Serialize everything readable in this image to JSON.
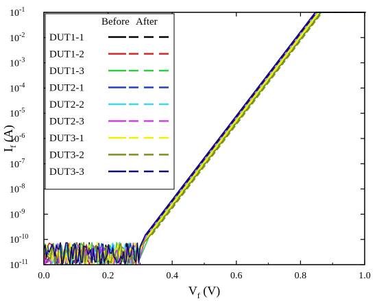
{
  "chart_data": {
    "type": "line",
    "y_scale": "log",
    "xlim": [
      0.0,
      1.0
    ],
    "ylim": [
      1e-11,
      0.1
    ],
    "x_ticks": [
      "0.0",
      "0.2",
      "0.4",
      "0.6",
      "0.8",
      "1.0"
    ],
    "x_tick_values": [
      0.0,
      0.2,
      0.4,
      0.6,
      0.8,
      1.0
    ],
    "y_ticks": [
      {
        "base": "10",
        "exp": "-11",
        "value": 1e-11
      },
      {
        "base": "10",
        "exp": "-10",
        "value": 1e-10
      },
      {
        "base": "10",
        "exp": "-9",
        "value": 1e-09
      },
      {
        "base": "10",
        "exp": "-8",
        "value": 1e-08
      },
      {
        "base": "10",
        "exp": "-7",
        "value": 1e-07
      },
      {
        "base": "10",
        "exp": "-6",
        "value": 1e-06
      },
      {
        "base": "10",
        "exp": "-5",
        "value": 1e-05
      },
      {
        "base": "10",
        "exp": "-4",
        "value": 0.0001
      },
      {
        "base": "10",
        "exp": "-3",
        "value": 0.001
      },
      {
        "base": "10",
        "exp": "-2",
        "value": 0.01
      },
      {
        "base": "10",
        "exp": "-1",
        "value": 0.1
      }
    ],
    "xlabel": {
      "main": "V",
      "sub": "f",
      "unit": " (V)"
    },
    "ylabel": {
      "main": "I",
      "sub": "f",
      "unit": " (A)"
    },
    "legend": {
      "position": "top-left",
      "header_before": "Before",
      "header_after": "After"
    },
    "grid": false,
    "series": [
      {
        "name": "DUT1-1",
        "color": "#000000",
        "points": [
          [
            0.0,
            3e-11
          ],
          [
            0.3,
            3e-11
          ],
          [
            0.32,
            1.5e-10
          ],
          [
            0.85,
            0.1
          ],
          [
            1.0,
            0.1
          ]
        ]
      },
      {
        "name": "DUT1-2",
        "color": "#d62728",
        "points": [
          [
            0.0,
            3e-11
          ],
          [
            0.3,
            3e-11
          ],
          [
            0.322,
            1.5e-10
          ],
          [
            0.852,
            0.1
          ],
          [
            1.0,
            0.1
          ]
        ]
      },
      {
        "name": "DUT1-3",
        "color": "#2ecc40",
        "points": [
          [
            0.0,
            3e-11
          ],
          [
            0.3,
            3e-11
          ],
          [
            0.33,
            1.5e-10
          ],
          [
            0.862,
            0.1
          ],
          [
            1.0,
            0.1
          ]
        ]
      },
      {
        "name": "DUT2-1",
        "color": "#1f3fd6",
        "points": [
          [
            0.0,
            3e-11
          ],
          [
            0.3,
            3e-11
          ],
          [
            0.32,
            1.5e-10
          ],
          [
            0.85,
            0.1
          ],
          [
            1.0,
            0.1
          ]
        ]
      },
      {
        "name": "DUT2-2",
        "color": "#3fd7f0",
        "points": [
          [
            0.0,
            3e-11
          ],
          [
            0.3,
            3e-11
          ],
          [
            0.321,
            1.5e-10
          ],
          [
            0.851,
            0.1
          ],
          [
            1.0,
            0.1
          ]
        ]
      },
      {
        "name": "DUT2-3",
        "color": "#d23fe6",
        "points": [
          [
            0.0,
            3e-11
          ],
          [
            0.3,
            3e-11
          ],
          [
            0.318,
            1.5e-10
          ],
          [
            0.848,
            0.1
          ],
          [
            1.0,
            0.1
          ]
        ]
      },
      {
        "name": "DUT3-1",
        "color": "#f2f000",
        "points": [
          [
            0.0,
            3e-11
          ],
          [
            0.3,
            3e-11
          ],
          [
            0.326,
            1.5e-10
          ],
          [
            0.856,
            0.1
          ],
          [
            1.0,
            0.1
          ]
        ]
      },
      {
        "name": "DUT3-2",
        "color": "#7f8f1a",
        "points": [
          [
            0.0,
            3e-11
          ],
          [
            0.3,
            3e-11
          ],
          [
            0.333,
            1.5e-10
          ],
          [
            0.864,
            0.1
          ],
          [
            1.0,
            0.1
          ]
        ]
      },
      {
        "name": "DUT3-3",
        "color": "#0a0a7a",
        "points": [
          [
            0.0,
            3e-11
          ],
          [
            0.3,
            3e-11
          ],
          [
            0.316,
            1.5e-10
          ],
          [
            0.846,
            0.1
          ],
          [
            1.0,
            0.1
          ]
        ]
      }
    ]
  }
}
